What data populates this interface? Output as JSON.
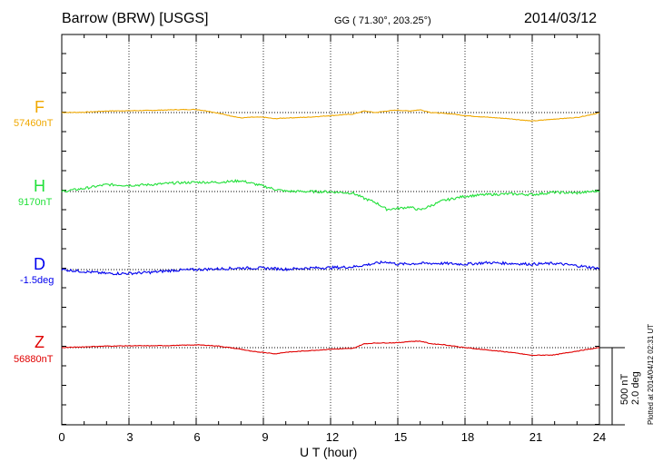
{
  "header": {
    "station": "Barrow (BRW)  [USGS]",
    "coords": "GG ( 71.30°, 203.25°)",
    "date": "2014/03/12"
  },
  "footer": {
    "plotted": "Plotted at 2014/04/12 02:31  UT"
  },
  "scale": {
    "nt": "500 nT",
    "deg": "2.0 deg"
  },
  "chart_data": {
    "type": "line",
    "title": "Barrow (BRW)  [USGS]",
    "xlabel": "U T (hour)",
    "xlim": [
      0,
      24
    ],
    "xticks": [
      "0",
      "3",
      "6",
      "9",
      "12",
      "15",
      "18",
      "21",
      "24"
    ],
    "scale_nT_per_bar": 500,
    "scale_deg_per_bar": 2.0,
    "series": [
      {
        "name": "F",
        "baseline_label": "57460nT",
        "unit": "nT",
        "baseline": 57460,
        "color": "#f0a800",
        "x": [
          0,
          1,
          2,
          3,
          4,
          5,
          6,
          6.5,
          7,
          7.5,
          8,
          8.5,
          9,
          9.5,
          10,
          11,
          12,
          13,
          13.5,
          14,
          14.5,
          15,
          15.5,
          16,
          16.5,
          17,
          17.5,
          18,
          19,
          20,
          21,
          22,
          23,
          24
        ],
        "y": [
          57460,
          57462,
          57470,
          57472,
          57474,
          57478,
          57480,
          57470,
          57455,
          57440,
          57425,
          57430,
          57430,
          57420,
          57425,
          57430,
          57440,
          57450,
          57470,
          57460,
          57470,
          57476,
          57470,
          57478,
          57460,
          57455,
          57450,
          57440,
          57430,
          57420,
          57405,
          57418,
          57428,
          57458
        ],
        "noise": 2
      },
      {
        "name": "H",
        "baseline_label": "9170nT",
        "unit": "nT",
        "baseline": 9170,
        "color": "#22e03a",
        "x": [
          0,
          1,
          2,
          3,
          4,
          5,
          6,
          7,
          8,
          9,
          9.5,
          10,
          11,
          12,
          13,
          13.5,
          14,
          14.5,
          15,
          15.5,
          16,
          16.5,
          17,
          18,
          19,
          20,
          21,
          22,
          23,
          24
        ],
        "y": [
          9170,
          9190,
          9215,
          9210,
          9215,
          9225,
          9230,
          9230,
          9240,
          9205,
          9185,
          9172,
          9170,
          9168,
          9160,
          9125,
          9100,
          9055,
          9060,
          9070,
          9050,
          9080,
          9110,
          9140,
          9150,
          9155,
          9150,
          9165,
          9160,
          9175
        ],
        "noise": 8
      },
      {
        "name": "D",
        "baseline_label": "-1.5deg",
        "unit": "deg",
        "baseline": -1.5,
        "color": "#0000ee",
        "x": [
          0,
          1,
          2,
          3,
          4,
          5,
          6,
          7,
          8,
          9,
          10,
          11,
          12,
          13,
          14,
          14.5,
          15,
          16,
          17,
          18,
          19,
          20,
          21,
          22,
          23,
          24
        ],
        "y": [
          -1.5,
          -1.55,
          -1.6,
          -1.6,
          -1.57,
          -1.52,
          -1.5,
          -1.48,
          -1.46,
          -1.46,
          -1.49,
          -1.46,
          -1.45,
          -1.43,
          -1.34,
          -1.3,
          -1.36,
          -1.34,
          -1.34,
          -1.36,
          -1.32,
          -1.34,
          -1.36,
          -1.34,
          -1.4,
          -1.47
        ],
        "noise": 0.035
      },
      {
        "name": "Z",
        "baseline_label": "56880nT",
        "unit": "nT",
        "baseline": 56880,
        "color": "#e00000",
        "x": [
          0,
          1,
          2,
          3,
          4,
          5,
          6,
          6.5,
          7,
          7.5,
          8,
          8.5,
          9,
          9.5,
          10,
          11,
          12,
          13,
          13.5,
          14,
          15,
          15.5,
          16,
          16.5,
          17,
          18,
          19,
          20,
          21,
          22,
          23,
          24
        ],
        "y": [
          56880,
          56885,
          56890,
          56892,
          56892,
          56894,
          56898,
          56895,
          56890,
          56880,
          56870,
          56855,
          56850,
          56840,
          56850,
          56860,
          56870,
          56875,
          56905,
          56910,
          56912,
          56920,
          56922,
          56905,
          56900,
          56880,
          56865,
          56850,
          56830,
          56833,
          56858,
          56880
        ],
        "noise": 2
      }
    ]
  }
}
